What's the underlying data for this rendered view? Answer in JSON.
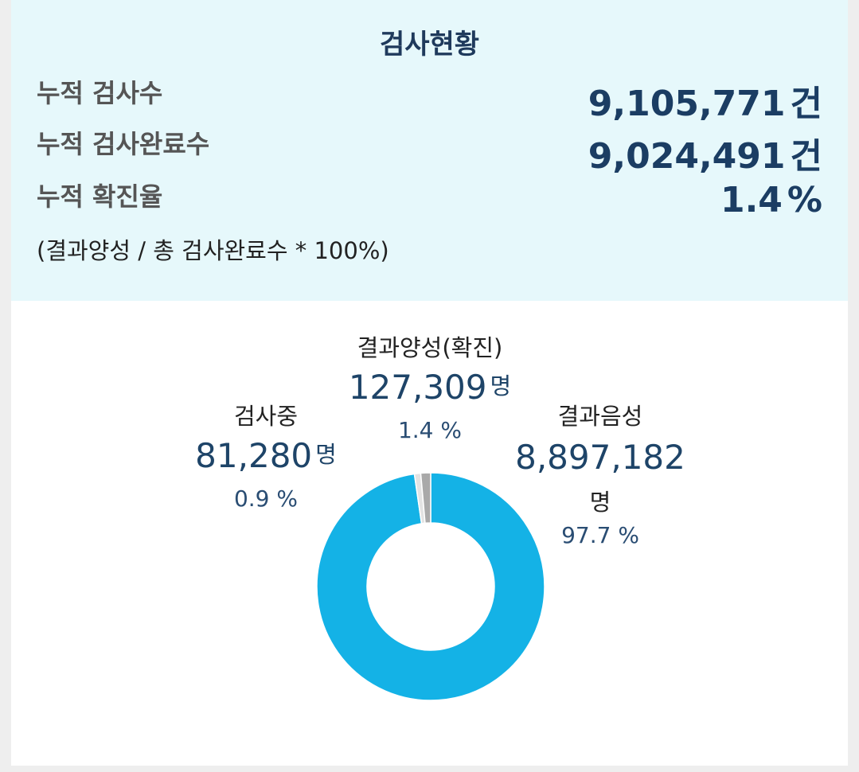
{
  "summary": {
    "title": "검사현황",
    "rows": [
      {
        "label": "누적 검사수",
        "value": "9,105,771",
        "unit": "건"
      },
      {
        "label": "누적 검사완료수",
        "value": "9,024,491",
        "unit": "건"
      },
      {
        "label": "누적 확진율",
        "value": "1.4",
        "unit": "%"
      }
    ],
    "formula": "(결과양성 / 총 검사완료수 * 100%)"
  },
  "chart_data": {
    "type": "pie",
    "count_unit": "명",
    "pct_unit": "%",
    "series": [
      {
        "name": "결과음성",
        "value": 8897182,
        "display": "8,897,182",
        "pct": "97.7",
        "color": "#14b2e6"
      },
      {
        "name": "검사중",
        "value": 81280,
        "display": "81,280",
        "pct": "0.9",
        "color": "#e3e3e3"
      },
      {
        "name": "결과양성(확진)",
        "value": 127309,
        "display": "127,309",
        "pct": "1.4",
        "color": "#a9a9a9"
      }
    ]
  }
}
